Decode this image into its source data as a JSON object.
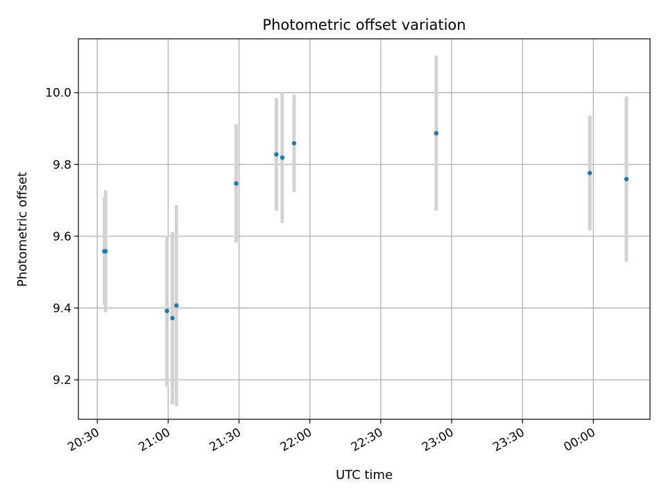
{
  "chart_data": {
    "type": "scatter",
    "title": "Photometric offset variation",
    "xlabel": "UTC time",
    "ylabel": "Photometric offset",
    "x_tick_labels": [
      "20:30",
      "21:00",
      "21:30",
      "22:00",
      "22:30",
      "23:00",
      "23:30",
      "00:00"
    ],
    "x_tick_minutes": [
      0,
      30,
      60,
      90,
      120,
      150,
      180,
      210
    ],
    "xlim_minutes": [
      -8,
      234
    ],
    "y_ticks": [
      9.2,
      9.4,
      9.6,
      9.8,
      10.0
    ],
    "y_tick_labels": [
      "9.2",
      "9.4",
      "9.6",
      "9.8",
      "10.0"
    ],
    "ylim": [
      9.09,
      10.15
    ],
    "grid": true,
    "point_color": "#1f77b4",
    "errorbar_color": "#d3d3d3",
    "points": [
      {
        "t": 3.0,
        "y": 9.558,
        "yerr": 0.15
      },
      {
        "t": 3.5,
        "y": 9.558,
        "yerr": 0.17
      },
      {
        "t": 29.5,
        "y": 9.392,
        "yerr": 0.21
      },
      {
        "t": 31.8,
        "y": 9.372,
        "yerr": 0.24
      },
      {
        "t": 33.5,
        "y": 9.407,
        "yerr": 0.28
      },
      {
        "t": 58.8,
        "y": 9.747,
        "yerr": 0.165
      },
      {
        "t": 75.8,
        "y": 9.828,
        "yerr": 0.157
      },
      {
        "t": 78.3,
        "y": 9.819,
        "yerr": 0.182
      },
      {
        "t": 83.3,
        "y": 9.859,
        "yerr": 0.136
      },
      {
        "t": 143.5,
        "y": 9.887,
        "yerr": 0.216
      },
      {
        "t": 208.5,
        "y": 9.776,
        "yerr": 0.16
      },
      {
        "t": 224.0,
        "y": 9.759,
        "yerr": 0.23
      }
    ]
  }
}
